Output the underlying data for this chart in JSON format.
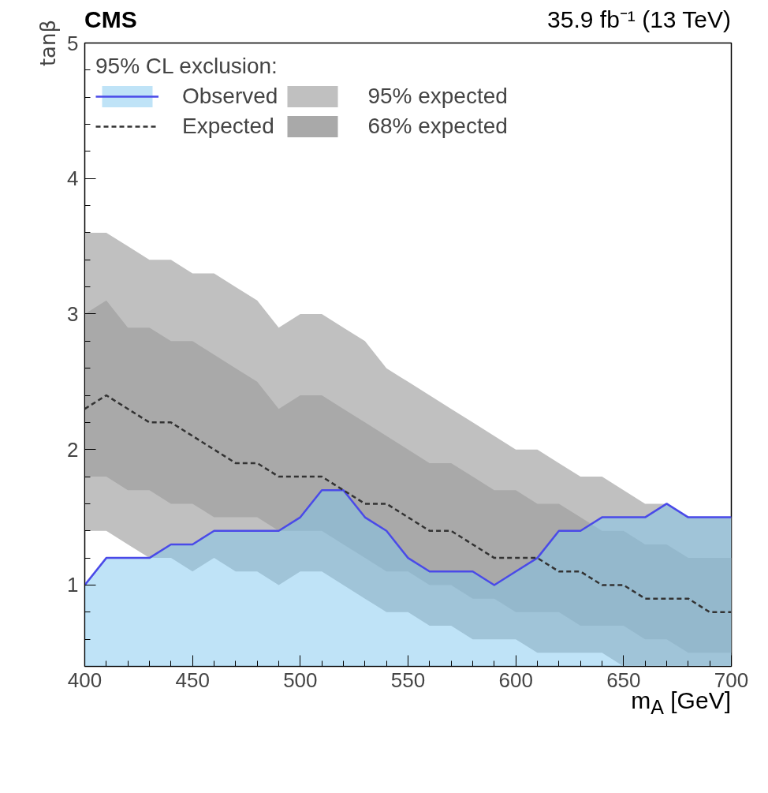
{
  "chart_data": {
    "type": "area",
    "title": "CMS",
    "subtitle": "35.9 fb⁻¹ (13 TeV)",
    "xlabel": "m$_{A}$ [GeV]",
    "ylabel": "tanβ",
    "legend_title": "95% CL exclusion:",
    "x": [
      400,
      410,
      420,
      430,
      440,
      450,
      460,
      470,
      480,
      490,
      500,
      510,
      520,
      530,
      540,
      550,
      560,
      570,
      580,
      590,
      600,
      610,
      620,
      630,
      640,
      650,
      660,
      670,
      680,
      690,
      700
    ],
    "series": [
      {
        "name": "Observed",
        "color": "#4a4ae8",
        "values": [
          1.0,
          1.2,
          1.2,
          1.2,
          1.3,
          1.3,
          1.4,
          1.4,
          1.4,
          1.4,
          1.5,
          1.7,
          1.7,
          1.5,
          1.4,
          1.2,
          1.1,
          1.1,
          1.1,
          1.0,
          1.1,
          1.2,
          1.4,
          1.4,
          1.5,
          1.5,
          1.5,
          1.6,
          1.5,
          1.5,
          1.5
        ]
      },
      {
        "name": "Expected",
        "type": "line",
        "line_style": "dashed",
        "color": "#333333",
        "values": [
          2.3,
          2.4,
          2.3,
          2.2,
          2.2,
          2.1,
          2.0,
          1.9,
          1.9,
          1.8,
          1.8,
          1.8,
          1.7,
          1.6,
          1.6,
          1.5,
          1.4,
          1.4,
          1.3,
          1.2,
          1.2,
          1.2,
          1.1,
          1.1,
          1.0,
          1.0,
          0.9,
          0.9,
          0.9,
          0.8,
          0.8
        ]
      },
      {
        "name": "95% expected",
        "color": "#c0c0c0",
        "values": [
          null,
          null,
          null,
          null,
          null,
          null,
          null,
          null,
          null,
          null,
          null,
          null,
          null,
          null,
          null,
          null,
          null,
          null,
          null,
          null,
          null,
          null,
          null,
          null,
          null,
          null,
          null,
          null,
          null,
          null,
          null
        ],
        "lower": [
          1.4,
          1.4,
          1.3,
          1.2,
          1.2,
          1.1,
          1.2,
          1.1,
          1.1,
          1.0,
          1.1,
          1.1,
          1.0,
          0.9,
          0.8,
          0.8,
          0.7,
          0.7,
          0.6,
          0.6,
          0.6,
          0.5,
          0.5,
          0.5,
          0.5,
          0.4,
          0.4,
          0.4,
          0.4,
          0.4,
          0.4
        ],
        "upper": [
          3.6,
          3.6,
          3.5,
          3.4,
          3.4,
          3.3,
          3.3,
          3.2,
          3.1,
          2.9,
          3.0,
          3.0,
          2.9,
          2.8,
          2.6,
          2.5,
          2.4,
          2.3,
          2.2,
          2.1,
          2.0,
          2.0,
          1.9,
          1.8,
          1.8,
          1.7,
          1.6,
          1.6,
          1.5,
          1.5,
          1.5
        ]
      },
      {
        "name": "68% expected",
        "color": "#a9a9a9",
        "values": [
          null,
          null,
          null,
          null,
          null,
          null,
          null,
          null,
          null,
          null,
          null,
          null,
          null,
          null,
          null,
          null,
          null,
          null,
          null,
          null,
          null,
          null,
          null,
          null,
          null,
          null,
          null,
          null,
          null,
          null,
          null
        ],
        "lower": [
          1.8,
          1.8,
          1.7,
          1.7,
          1.6,
          1.6,
          1.5,
          1.5,
          1.5,
          1.4,
          1.4,
          1.4,
          1.3,
          1.2,
          1.1,
          1.1,
          1.0,
          1.0,
          0.9,
          0.9,
          0.8,
          0.8,
          0.8,
          0.7,
          0.7,
          0.7,
          0.6,
          0.6,
          0.5,
          0.5,
          0.5
        ],
        "upper": [
          3.0,
          3.1,
          2.9,
          2.9,
          2.8,
          2.8,
          2.7,
          2.6,
          2.5,
          2.3,
          2.4,
          2.4,
          2.3,
          2.2,
          2.1,
          2.0,
          1.9,
          1.9,
          1.8,
          1.7,
          1.7,
          1.6,
          1.6,
          1.5,
          1.4,
          1.4,
          1.3,
          1.3,
          1.2,
          1.2,
          1.2
        ]
      }
    ],
    "xlim": [
      400,
      700
    ],
    "ylim": [
      0.4,
      5
    ],
    "xticks": [
      400,
      450,
      500,
      550,
      600,
      650,
      700
    ],
    "yticks": [
      1,
      2,
      3,
      4,
      5
    ],
    "grid": false,
    "legend": "top left"
  }
}
